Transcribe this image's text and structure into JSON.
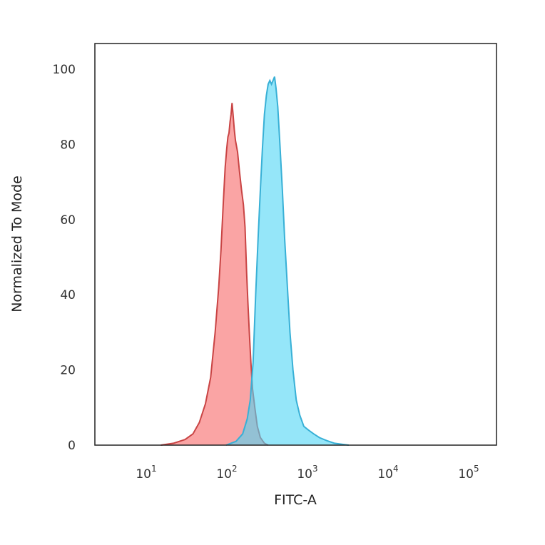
{
  "chart_data": {
    "type": "area",
    "title": "",
    "xlabel": "FITC-A",
    "ylabel": "Normalized To Mode",
    "xscale": "log",
    "xlim": [
      2,
      200000
    ],
    "ylim": [
      0,
      105
    ],
    "grid": false,
    "legend": "none",
    "x_ticks": [
      {
        "base": "10",
        "exp": "1",
        "value": 10
      },
      {
        "base": "10",
        "exp": "2",
        "value": 100
      },
      {
        "base": "10",
        "exp": "3",
        "value": 1000
      },
      {
        "base": "10",
        "exp": "4",
        "value": 10000
      },
      {
        "base": "10",
        "exp": "5",
        "value": 100000
      }
    ],
    "y_ticks": [
      {
        "label": "0",
        "value": 0
      },
      {
        "label": "20",
        "value": 20
      },
      {
        "label": "40",
        "value": 40
      },
      {
        "label": "60",
        "value": 60
      },
      {
        "label": "80",
        "value": 80
      },
      {
        "label": "100",
        "value": 100
      }
    ],
    "series": [
      {
        "fill": "#f99a9a",
        "stroke": "#c94444",
        "points": [
          [
            14,
            0
          ],
          [
            20,
            0.5
          ],
          [
            28,
            1.5
          ],
          [
            35,
            3
          ],
          [
            42,
            6
          ],
          [
            50,
            11
          ],
          [
            58,
            18
          ],
          [
            66,
            30
          ],
          [
            73,
            42
          ],
          [
            78,
            52
          ],
          [
            83,
            64
          ],
          [
            88,
            74
          ],
          [
            92,
            79
          ],
          [
            95,
            82
          ],
          [
            98,
            83
          ],
          [
            101,
            86
          ],
          [
            104,
            88
          ],
          [
            107,
            91
          ],
          [
            110,
            88
          ],
          [
            114,
            84
          ],
          [
            118,
            81
          ],
          [
            125,
            78
          ],
          [
            132,
            73
          ],
          [
            140,
            68
          ],
          [
            148,
            64
          ],
          [
            155,
            58
          ],
          [
            162,
            46
          ],
          [
            168,
            38
          ],
          [
            175,
            30
          ],
          [
            183,
            22
          ],
          [
            192,
            15
          ],
          [
            205,
            10
          ],
          [
            220,
            5
          ],
          [
            240,
            2
          ],
          [
            270,
            0.5
          ],
          [
            300,
            0
          ]
        ]
      },
      {
        "fill": "#4fd6f5",
        "stroke": "#38b0d6",
        "points": [
          [
            90,
            0
          ],
          [
            120,
            1
          ],
          [
            145,
            3
          ],
          [
            165,
            7
          ],
          [
            180,
            12
          ],
          [
            195,
            22
          ],
          [
            210,
            40
          ],
          [
            225,
            55
          ],
          [
            240,
            68
          ],
          [
            255,
            79
          ],
          [
            270,
            88
          ],
          [
            285,
            93
          ],
          [
            300,
            96
          ],
          [
            315,
            97
          ],
          [
            330,
            96
          ],
          [
            345,
            97
          ],
          [
            360,
            98
          ],
          [
            375,
            95
          ],
          [
            395,
            90
          ],
          [
            420,
            80
          ],
          [
            450,
            68
          ],
          [
            480,
            55
          ],
          [
            520,
            42
          ],
          [
            560,
            30
          ],
          [
            610,
            20
          ],
          [
            670,
            12
          ],
          [
            740,
            8
          ],
          [
            830,
            5
          ],
          [
            950,
            4
          ],
          [
            1100,
            3
          ],
          [
            1300,
            2
          ],
          [
            1600,
            1.2
          ],
          [
            2000,
            0.5
          ],
          [
            2500,
            0.2
          ],
          [
            3000,
            0
          ]
        ]
      }
    ]
  }
}
